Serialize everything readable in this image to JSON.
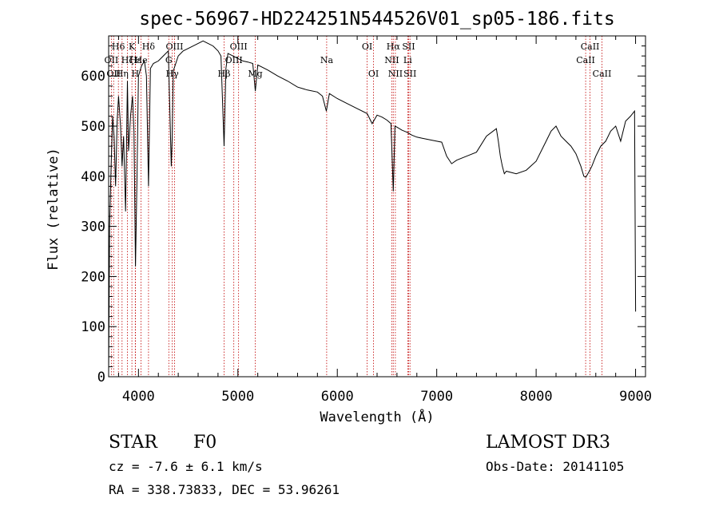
{
  "chart_data": {
    "type": "line",
    "title": "spec-56967-HD224251N544526V01_sp05-186.fits",
    "xlabel": "Wavelength (Å)",
    "ylabel": "Flux (relative)",
    "xlim": [
      3700,
      9100
    ],
    "ylim": [
      0,
      680
    ],
    "xticks": [
      4000,
      5000,
      6000,
      7000,
      8000,
      9000
    ],
    "yticks": [
      0,
      100,
      200,
      300,
      400,
      500,
      600
    ],
    "series": [
      {
        "name": "flux",
        "x": [
          3700,
          3710,
          3725,
          3740,
          3755,
          3770,
          3785,
          3800,
          3820,
          3835,
          3850,
          3870,
          3889,
          3900,
          3920,
          3940,
          3955,
          3970,
          3985,
          4000,
          4030,
          4060,
          4080,
          4101,
          4120,
          4150,
          4200,
          4250,
          4300,
          4330,
          4340,
          4350,
          4400,
          4450,
          4500,
          4550,
          4600,
          4650,
          4700,
          4750,
          4800,
          4830,
          4861,
          4880,
          4900,
          4950,
          5000,
          5050,
          5100,
          5150,
          5175,
          5200,
          5300,
          5400,
          5500,
          5600,
          5700,
          5800,
          5850,
          5890,
          5920,
          6000,
          6100,
          6200,
          6300,
          6350,
          6400,
          6450,
          6500,
          6540,
          6563,
          6580,
          6600,
          6650,
          6700,
          6750,
          6800,
          6850,
          6900,
          6950,
          7000,
          7050,
          7100,
          7150,
          7200,
          7300,
          7400,
          7500,
          7600,
          7620,
          7640,
          7660,
          7680,
          7700,
          7800,
          7900,
          8000,
          8100,
          8150,
          8200,
          8250,
          8300,
          8350,
          8400,
          8450,
          8480,
          8500,
          8520,
          8540,
          8560,
          8600,
          8650,
          8700,
          8750,
          8800,
          8850,
          8900,
          8950,
          8990,
          9000
        ],
        "y": [
          10,
          300,
          420,
          520,
          480,
          380,
          510,
          560,
          500,
          420,
          480,
          330,
          590,
          450,
          520,
          560,
          490,
          220,
          400,
          600,
          620,
          630,
          600,
          380,
          615,
          625,
          630,
          640,
          650,
          420,
          480,
          610,
          640,
          650,
          655,
          660,
          665,
          670,
          665,
          660,
          650,
          640,
          460,
          615,
          645,
          640,
          635,
          630,
          628,
          625,
          570,
          622,
          612,
          600,
          590,
          578,
          572,
          568,
          560,
          530,
          565,
          555,
          545,
          535,
          525,
          505,
          522,
          518,
          512,
          505,
          370,
          500,
          498,
          492,
          488,
          482,
          478,
          476,
          474,
          472,
          470,
          468,
          440,
          425,
          432,
          440,
          448,
          480,
          495,
          470,
          440,
          420,
          405,
          410,
          405,
          412,
          430,
          470,
          490,
          500,
          480,
          470,
          460,
          445,
          420,
          400,
          398,
          405,
          412,
          420,
          440,
          460,
          470,
          490,
          500,
          470,
          510,
          520,
          530,
          130
        ]
      }
    ],
    "line_markers": [
      {
        "w": 3727,
        "label": "OII",
        "row": 2
      },
      {
        "w": 3750,
        "label": "OII",
        "row": 3
      },
      {
        "w": 3798,
        "label": "H6",
        "row": 1
      },
      {
        "w": 3835,
        "label": "Hη",
        "row": 3
      },
      {
        "w": 3889,
        "label": "Hζ",
        "row": 2
      },
      {
        "w": 3934,
        "label": "K",
        "row": 1
      },
      {
        "w": 3968,
        "label": "H",
        "row": 3
      },
      {
        "w": 3970,
        "label": "Hε",
        "row": 2
      },
      {
        "w": 4026,
        "label": "He",
        "row": 2
      },
      {
        "w": 4101,
        "label": "Hδ",
        "row": 1
      },
      {
        "w": 4305,
        "label": "G",
        "row": 2
      },
      {
        "w": 4340,
        "label": "Hγ",
        "row": 3
      },
      {
        "w": 4363,
        "label": "OIII",
        "row": 1
      },
      {
        "w": 4861,
        "label": "Hβ",
        "row": 3
      },
      {
        "w": 4959,
        "label": "OIII",
        "row": 2
      },
      {
        "w": 5007,
        "label": "OIII",
        "row": 1
      },
      {
        "w": 5175,
        "label": "Mg",
        "row": 3
      },
      {
        "w": 5893,
        "label": "Na",
        "row": 2
      },
      {
        "w": 6300,
        "label": "OI",
        "row": 1
      },
      {
        "w": 6364,
        "label": "OI",
        "row": 3
      },
      {
        "w": 6548,
        "label": "NII",
        "row": 2
      },
      {
        "w": 6563,
        "label": "Hα",
        "row": 1
      },
      {
        "w": 6584,
        "label": "NII",
        "row": 3
      },
      {
        "w": 6708,
        "label": "Li",
        "row": 2
      },
      {
        "w": 6717,
        "label": "SII",
        "row": 1
      },
      {
        "w": 6731,
        "label": "SII",
        "row": 3
      },
      {
        "w": 8498,
        "label": "CaII",
        "row": 2
      },
      {
        "w": 8542,
        "label": "CaII",
        "row": 1
      },
      {
        "w": 8662,
        "label": "CaII",
        "row": 3
      }
    ]
  },
  "info": {
    "class": "STAR",
    "subclass": "F0",
    "survey": "LAMOST DR3",
    "cz": "cz = -7.6 ± 6.1 km/s",
    "obsdate": "Obs-Date: 20141105",
    "coords": "RA = 338.73833, DEC =  53.96261"
  },
  "colors": {
    "line": "#000000",
    "marker": "#c00000",
    "axis": "#000000"
  }
}
